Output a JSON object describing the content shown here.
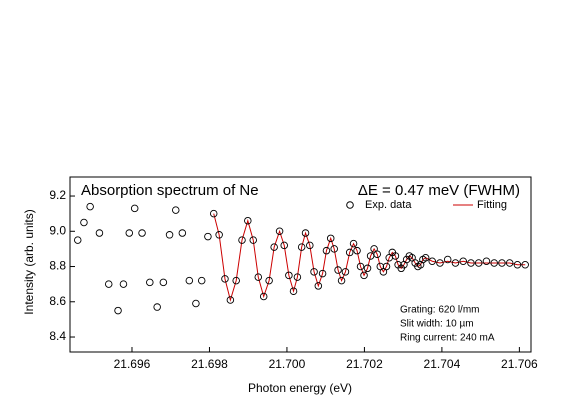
{
  "chart_data": {
    "type": "scatter",
    "title": "Absorption spectrum of Ne",
    "annotation": "ΔE = 0.47 meV (FWHM)",
    "notes": [
      "Grating:  620 l/mm",
      "Slit width: 10 µm",
      "Ring current: 240 mA"
    ],
    "x_label": "Photon energy (eV)",
    "y_label": "Intensity (arb. units)",
    "xlim": [
      21.6944,
      21.7063
    ],
    "ylim": [
      8.315,
      9.308
    ],
    "xticks": [
      21.696,
      21.698,
      {
        "value": 21.7,
        "label": "21.700"
      },
      21.702,
      21.704,
      21.706
    ],
    "yticks": [
      8.4,
      8.6,
      8.8,
      {
        "value": 9,
        "label": "9.0"
      },
      9.2
    ],
    "legend": "upper right",
    "series": [
      {
        "name": "Exp. data",
        "color": "#000000",
        "marker": "circle",
        "x": [
          21.6946,
          21.69476,
          21.69492,
          21.69516,
          21.6954,
          21.69564,
          21.69578,
          21.69593,
          21.69607,
          21.69626,
          21.69646,
          21.69665,
          21.69681,
          21.69697,
          21.69713,
          21.6973,
          21.69748,
          21.69765,
          21.6978,
          21.69796,
          21.69811,
          21.69825,
          21.6984,
          21.69854,
          21.69869,
          21.69884,
          21.69899,
          21.69913,
          21.69926,
          21.6994,
          21.69954,
          21.69967,
          21.69981,
          21.69993,
          21.70005,
          21.70017,
          21.70027,
          21.70038,
          21.70048,
          21.70059,
          21.7007,
          21.70081,
          21.70092,
          21.70102,
          21.70113,
          21.70122,
          21.70132,
          21.70141,
          21.70151,
          21.70162,
          21.70172,
          21.70181,
          21.7019,
          21.70199,
          21.70208,
          21.70216,
          21.70225,
          21.70233,
          21.70241,
          21.70249,
          21.70257,
          21.70264,
          21.70272,
          21.7028,
          21.70287,
          21.70295,
          21.70302,
          21.70309,
          21.70316,
          21.70323,
          21.70331,
          21.70338,
          21.70345,
          21.70351,
          21.70358,
          21.70375,
          21.70395,
          21.70415,
          21.70435,
          21.70455,
          21.70475,
          21.70495,
          21.70515,
          21.70535,
          21.70555,
          21.70575,
          21.70595,
          21.70615
        ],
        "values": [
          8.95,
          9.05,
          9.14,
          8.99,
          8.7,
          8.55,
          8.7,
          8.99,
          9.13,
          8.99,
          8.71,
          8.57,
          8.71,
          8.98,
          9.12,
          8.99,
          8.72,
          8.59,
          8.72,
          8.97,
          9.1,
          8.98,
          8.73,
          8.61,
          8.72,
          8.95,
          9.06,
          8.95,
          8.74,
          8.63,
          8.72,
          8.91,
          9.0,
          8.92,
          8.75,
          8.66,
          8.74,
          8.91,
          8.99,
          8.92,
          8.77,
          8.69,
          8.76,
          8.89,
          8.96,
          8.9,
          8.78,
          8.72,
          8.77,
          8.88,
          8.93,
          8.89,
          8.8,
          8.75,
          8.79,
          8.86,
          8.9,
          8.87,
          8.8,
          8.77,
          8.8,
          8.85,
          8.88,
          8.86,
          8.81,
          8.79,
          8.81,
          8.84,
          8.86,
          8.85,
          8.82,
          8.8,
          8.81,
          8.84,
          8.85,
          8.83,
          8.82,
          8.84,
          8.82,
          8.83,
          8.82,
          8.82,
          8.83,
          8.82,
          8.82,
          8.82,
          8.81,
          8.81
        ]
      },
      {
        "name": "Fitting",
        "color": "#cc0000",
        "marker": "line",
        "x": [
          21.69811,
          21.69825,
          21.6984,
          21.69854,
          21.69869,
          21.69884,
          21.69899,
          21.69913,
          21.69926,
          21.6994,
          21.69954,
          21.69967,
          21.69981,
          21.69993,
          21.70005,
          21.70017,
          21.70027,
          21.70038,
          21.70048,
          21.70059,
          21.7007,
          21.70081,
          21.70092,
          21.70102,
          21.70113,
          21.70122,
          21.70132,
          21.70141,
          21.70151,
          21.70162,
          21.70172,
          21.70181,
          21.7019,
          21.70199,
          21.70208,
          21.70216,
          21.70225,
          21.70233,
          21.70241,
          21.70249,
          21.70257,
          21.70264,
          21.70272,
          21.7028,
          21.70287,
          21.70295,
          21.70302,
          21.70309,
          21.70316,
          21.70323,
          21.70331,
          21.70338,
          21.70345,
          21.70351,
          21.70358,
          21.70375,
          21.70395,
          21.70415,
          21.70435,
          21.70455,
          21.70475,
          21.70495,
          21.70515,
          21.70535,
          21.70555,
          21.70575,
          21.70595,
          21.70615
        ],
        "values": [
          9.1,
          8.98,
          8.73,
          8.61,
          8.72,
          8.95,
          9.06,
          8.95,
          8.74,
          8.63,
          8.72,
          8.91,
          9.0,
          8.92,
          8.75,
          8.66,
          8.74,
          8.91,
          8.99,
          8.92,
          8.77,
          8.69,
          8.76,
          8.89,
          8.96,
          8.9,
          8.78,
          8.72,
          8.77,
          8.88,
          8.93,
          8.89,
          8.8,
          8.75,
          8.79,
          8.86,
          8.9,
          8.87,
          8.8,
          8.77,
          8.8,
          8.85,
          8.88,
          8.86,
          8.81,
          8.79,
          8.81,
          8.84,
          8.86,
          8.85,
          8.82,
          8.8,
          8.81,
          8.84,
          8.85,
          8.83,
          8.82,
          8.83,
          8.82,
          8.83,
          8.82,
          8.82,
          8.82,
          8.82,
          8.82,
          8.82,
          8.81,
          8.81
        ]
      }
    ]
  }
}
